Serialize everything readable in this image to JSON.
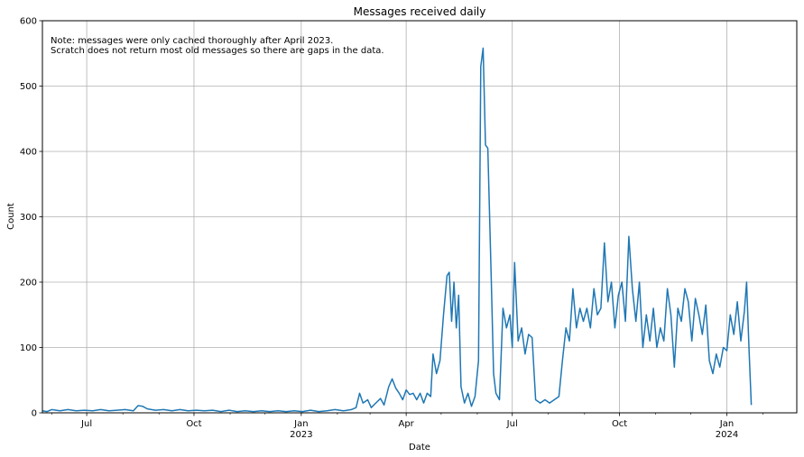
{
  "chart_data": {
    "type": "line",
    "title": "Messages received daily",
    "xlabel": "Date",
    "ylabel": "Count",
    "xlim": [
      "2022-05-24",
      "2024-03-01"
    ],
    "ylim": [
      0,
      600
    ],
    "yticks": [
      0,
      100,
      200,
      300,
      400,
      500,
      600
    ],
    "xticks_major": [
      {
        "date": "2022-07-01",
        "label": "Jul",
        "year_label": ""
      },
      {
        "date": "2022-10-01",
        "label": "Oct",
        "year_label": ""
      },
      {
        "date": "2023-01-01",
        "label": "Jan",
        "year_label": "2023"
      },
      {
        "date": "2023-04-01",
        "label": "Apr",
        "year_label": ""
      },
      {
        "date": "2023-07-01",
        "label": "Jul",
        "year_label": ""
      },
      {
        "date": "2023-10-01",
        "label": "Oct",
        "year_label": ""
      },
      {
        "date": "2024-01-01",
        "label": "Jan",
        "year_label": "2024"
      }
    ],
    "xticks_minor": [
      "2022-06-01",
      "2022-08-01",
      "2022-09-01",
      "2022-11-01",
      "2022-12-01",
      "2023-02-01",
      "2023-03-01",
      "2023-05-01",
      "2023-06-01",
      "2023-08-01",
      "2023-09-01",
      "2023-11-01",
      "2023-12-01",
      "2024-02-01"
    ],
    "grid": true,
    "annotation": [
      "Note: messages were only cached thoroughly after April 2023.",
      "Scratch does not return most old messages so there are gaps in the data."
    ],
    "series_color": "#1f77b4",
    "series": [
      {
        "name": "",
        "points": [
          [
            "2022-05-24",
            3
          ],
          [
            "2022-05-28",
            2
          ],
          [
            "2022-06-01",
            5
          ],
          [
            "2022-06-08",
            3
          ],
          [
            "2022-06-15",
            5
          ],
          [
            "2022-06-22",
            3
          ],
          [
            "2022-06-29",
            4
          ],
          [
            "2022-07-06",
            3
          ],
          [
            "2022-07-13",
            5
          ],
          [
            "2022-07-20",
            3
          ],
          [
            "2022-07-27",
            4
          ],
          [
            "2022-08-03",
            5
          ],
          [
            "2022-08-10",
            3
          ],
          [
            "2022-08-14",
            11
          ],
          [
            "2022-08-18",
            10
          ],
          [
            "2022-08-22",
            6
          ],
          [
            "2022-08-29",
            4
          ],
          [
            "2022-09-05",
            5
          ],
          [
            "2022-09-12",
            3
          ],
          [
            "2022-09-19",
            5
          ],
          [
            "2022-09-26",
            3
          ],
          [
            "2022-10-03",
            4
          ],
          [
            "2022-10-10",
            3
          ],
          [
            "2022-10-17",
            4
          ],
          [
            "2022-10-24",
            2
          ],
          [
            "2022-10-31",
            4
          ],
          [
            "2022-11-07",
            2
          ],
          [
            "2022-11-14",
            3
          ],
          [
            "2022-11-21",
            2
          ],
          [
            "2022-11-28",
            3
          ],
          [
            "2022-12-05",
            2
          ],
          [
            "2022-12-12",
            3
          ],
          [
            "2022-12-19",
            2
          ],
          [
            "2022-12-26",
            3
          ],
          [
            "2023-01-02",
            2
          ],
          [
            "2023-01-09",
            4
          ],
          [
            "2023-01-16",
            2
          ],
          [
            "2023-01-23",
            3
          ],
          [
            "2023-01-30",
            5
          ],
          [
            "2023-02-06",
            3
          ],
          [
            "2023-02-13",
            5
          ],
          [
            "2023-02-17",
            8
          ],
          [
            "2023-02-20",
            30
          ],
          [
            "2023-02-23",
            15
          ],
          [
            "2023-02-27",
            20
          ],
          [
            "2023-03-02",
            8
          ],
          [
            "2023-03-06",
            15
          ],
          [
            "2023-03-10",
            22
          ],
          [
            "2023-03-13",
            12
          ],
          [
            "2023-03-17",
            40
          ],
          [
            "2023-03-20",
            52
          ],
          [
            "2023-03-23",
            38
          ],
          [
            "2023-03-26",
            30
          ],
          [
            "2023-03-29",
            20
          ],
          [
            "2023-04-01",
            35
          ],
          [
            "2023-04-04",
            28
          ],
          [
            "2023-04-07",
            30
          ],
          [
            "2023-04-10",
            20
          ],
          [
            "2023-04-13",
            30
          ],
          [
            "2023-04-16",
            15
          ],
          [
            "2023-04-19",
            30
          ],
          [
            "2023-04-22",
            25
          ],
          [
            "2023-04-24",
            90
          ],
          [
            "2023-04-27",
            60
          ],
          [
            "2023-04-30",
            80
          ],
          [
            "2023-05-03",
            150
          ],
          [
            "2023-05-06",
            210
          ],
          [
            "2023-05-08",
            215
          ],
          [
            "2023-05-10",
            140
          ],
          [
            "2023-05-12",
            200
          ],
          [
            "2023-05-14",
            130
          ],
          [
            "2023-05-16",
            180
          ],
          [
            "2023-05-18",
            40
          ],
          [
            "2023-05-21",
            15
          ],
          [
            "2023-05-24",
            30
          ],
          [
            "2023-05-27",
            10
          ],
          [
            "2023-05-30",
            25
          ],
          [
            "2023-06-02",
            80
          ],
          [
            "2023-06-04",
            530
          ],
          [
            "2023-06-06",
            558
          ],
          [
            "2023-06-08",
            410
          ],
          [
            "2023-06-10",
            405
          ],
          [
            "2023-06-13",
            200
          ],
          [
            "2023-06-15",
            60
          ],
          [
            "2023-06-17",
            30
          ],
          [
            "2023-06-20",
            20
          ],
          [
            "2023-06-23",
            160
          ],
          [
            "2023-06-26",
            130
          ],
          [
            "2023-06-29",
            150
          ],
          [
            "2023-07-01",
            100
          ],
          [
            "2023-07-03",
            230
          ],
          [
            "2023-07-06",
            110
          ],
          [
            "2023-07-09",
            130
          ],
          [
            "2023-07-12",
            90
          ],
          [
            "2023-07-15",
            120
          ],
          [
            "2023-07-18",
            115
          ],
          [
            "2023-07-21",
            20
          ],
          [
            "2023-07-25",
            15
          ],
          [
            "2023-07-29",
            20
          ],
          [
            "2023-08-02",
            15
          ],
          [
            "2023-08-06",
            20
          ],
          [
            "2023-08-10",
            25
          ],
          [
            "2023-08-13",
            80
          ],
          [
            "2023-08-16",
            130
          ],
          [
            "2023-08-19",
            110
          ],
          [
            "2023-08-22",
            190
          ],
          [
            "2023-08-25",
            130
          ],
          [
            "2023-08-28",
            160
          ],
          [
            "2023-08-31",
            140
          ],
          [
            "2023-09-03",
            160
          ],
          [
            "2023-09-06",
            130
          ],
          [
            "2023-09-09",
            190
          ],
          [
            "2023-09-12",
            150
          ],
          [
            "2023-09-15",
            160
          ],
          [
            "2023-09-18",
            260
          ],
          [
            "2023-09-21",
            170
          ],
          [
            "2023-09-24",
            200
          ],
          [
            "2023-09-27",
            130
          ],
          [
            "2023-09-30",
            180
          ],
          [
            "2023-10-03",
            200
          ],
          [
            "2023-10-06",
            140
          ],
          [
            "2023-10-09",
            270
          ],
          [
            "2023-10-12",
            190
          ],
          [
            "2023-10-15",
            140
          ],
          [
            "2023-10-18",
            200
          ],
          [
            "2023-10-21",
            100
          ],
          [
            "2023-10-24",
            150
          ],
          [
            "2023-10-27",
            110
          ],
          [
            "2023-10-30",
            160
          ],
          [
            "2023-11-02",
            100
          ],
          [
            "2023-11-05",
            130
          ],
          [
            "2023-11-08",
            110
          ],
          [
            "2023-11-11",
            190
          ],
          [
            "2023-11-14",
            150
          ],
          [
            "2023-11-17",
            70
          ],
          [
            "2023-11-20",
            160
          ],
          [
            "2023-11-23",
            140
          ],
          [
            "2023-11-26",
            190
          ],
          [
            "2023-11-29",
            170
          ],
          [
            "2023-12-02",
            110
          ],
          [
            "2023-12-05",
            175
          ],
          [
            "2023-12-08",
            150
          ],
          [
            "2023-12-11",
            120
          ],
          [
            "2023-12-14",
            165
          ],
          [
            "2023-12-17",
            80
          ],
          [
            "2023-12-20",
            60
          ],
          [
            "2023-12-23",
            90
          ],
          [
            "2023-12-26",
            70
          ],
          [
            "2023-12-29",
            100
          ],
          [
            "2024-01-01",
            95
          ],
          [
            "2024-01-04",
            150
          ],
          [
            "2024-01-07",
            120
          ],
          [
            "2024-01-10",
            170
          ],
          [
            "2024-01-13",
            110
          ],
          [
            "2024-01-16",
            155
          ],
          [
            "2024-01-18",
            200
          ],
          [
            "2024-01-20",
            100
          ],
          [
            "2024-01-22",
            12
          ]
        ]
      }
    ]
  }
}
